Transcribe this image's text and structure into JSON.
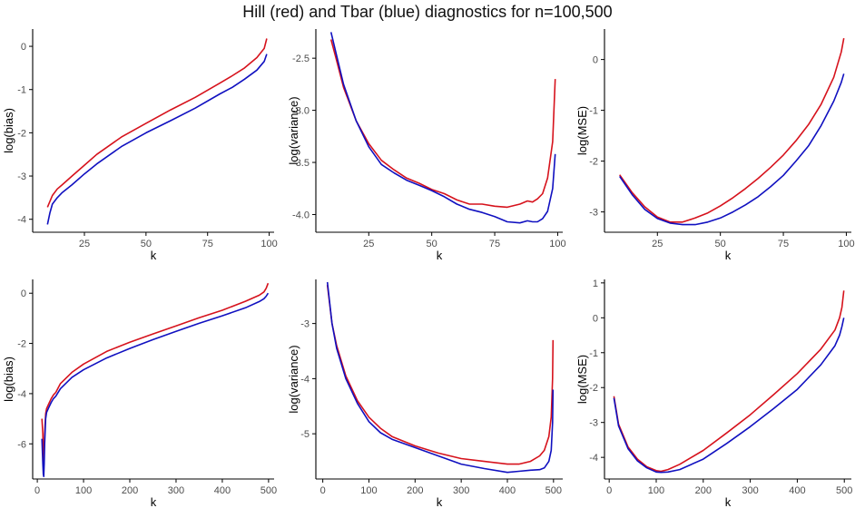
{
  "title": "Hill (red) and Tbar (blue) diagnostics for n=100,500",
  "colors": {
    "hill": "#d6121c",
    "tbar": "#1010c0",
    "axis": "#000000",
    "tick_text": "#4d4d4d"
  },
  "chart_data": [
    {
      "type": "line",
      "xlabel": "k",
      "ylabel": "log(bias)",
      "xlim": [
        4,
        102
      ],
      "ylim": [
        -4.3,
        0.4
      ],
      "xticks": [
        25,
        50,
        75,
        100
      ],
      "xtick_labels": [
        "25",
        "50",
        "75",
        "100"
      ],
      "yticks": [
        -4,
        -3,
        -2,
        -1,
        0
      ],
      "ytick_labels": [
        "-4",
        "-3",
        "-2",
        "-1",
        "0"
      ],
      "series": [
        {
          "name": "Hill",
          "color": "#d6121c",
          "x": [
            10,
            12,
            14,
            16,
            20,
            25,
            30,
            40,
            50,
            60,
            70,
            80,
            85,
            90,
            95,
            98,
            99
          ],
          "y": [
            -3.72,
            -3.45,
            -3.3,
            -3.2,
            -3.0,
            -2.75,
            -2.5,
            -2.1,
            -1.78,
            -1.47,
            -1.18,
            -0.85,
            -0.68,
            -0.5,
            -0.26,
            -0.05,
            0.18
          ]
        },
        {
          "name": "Tbar",
          "color": "#1010c0",
          "x": [
            10,
            11,
            12,
            14,
            16,
            20,
            25,
            30,
            40,
            50,
            60,
            70,
            80,
            85,
            90,
            95,
            98,
            99
          ],
          "y": [
            -4.12,
            -3.85,
            -3.65,
            -3.5,
            -3.38,
            -3.2,
            -2.95,
            -2.72,
            -2.32,
            -2.0,
            -1.72,
            -1.43,
            -1.1,
            -0.95,
            -0.76,
            -0.55,
            -0.35,
            -0.18
          ]
        }
      ]
    },
    {
      "type": "line",
      "xlabel": "k",
      "ylabel": "log(variance)",
      "xlim": [
        4,
        102
      ],
      "ylim": [
        -4.17,
        -2.22
      ],
      "xticks": [
        25,
        50,
        75,
        100
      ],
      "xtick_labels": [
        "25",
        "50",
        "75",
        "100"
      ],
      "yticks": [
        -4.0,
        -3.5,
        -3.0,
        -2.5
      ],
      "ytick_labels": [
        "-4.0",
        "-3.5",
        "-3.0",
        "-2.5"
      ],
      "series": [
        {
          "name": "Hill",
          "color": "#d6121c",
          "x": [
            10,
            12,
            15,
            20,
            25,
            30,
            35,
            40,
            45,
            50,
            55,
            60,
            65,
            70,
            75,
            80,
            85,
            88,
            90,
            92,
            94,
            96,
            98,
            99
          ],
          "y": [
            -2.32,
            -2.5,
            -2.78,
            -3.1,
            -3.32,
            -3.48,
            -3.57,
            -3.65,
            -3.7,
            -3.76,
            -3.8,
            -3.86,
            -3.9,
            -3.9,
            -3.92,
            -3.93,
            -3.9,
            -3.87,
            -3.88,
            -3.85,
            -3.8,
            -3.65,
            -3.3,
            -2.7
          ]
        },
        {
          "name": "Tbar",
          "color": "#1010c0",
          "x": [
            10,
            12,
            15,
            20,
            25,
            30,
            35,
            40,
            45,
            50,
            55,
            60,
            65,
            70,
            75,
            80,
            85,
            88,
            90,
            92,
            94,
            96,
            98,
            99
          ],
          "y": [
            -2.25,
            -2.45,
            -2.75,
            -3.1,
            -3.35,
            -3.52,
            -3.6,
            -3.67,
            -3.72,
            -3.77,
            -3.83,
            -3.9,
            -3.95,
            -3.98,
            -4.02,
            -4.07,
            -4.08,
            -4.06,
            -4.07,
            -4.07,
            -4.04,
            -3.97,
            -3.75,
            -3.42
          ]
        }
      ]
    },
    {
      "type": "line",
      "xlabel": "k",
      "ylabel": "log(MSE)",
      "xlim": [
        4,
        102
      ],
      "ylim": [
        -3.4,
        0.6
      ],
      "xticks": [
        25,
        50,
        75,
        100
      ],
      "xtick_labels": [
        "25",
        "50",
        "75",
        "100"
      ],
      "yticks": [
        -3,
        -2,
        -1,
        0
      ],
      "ytick_labels": [
        "-3",
        "-2",
        "-1",
        "0"
      ],
      "series": [
        {
          "name": "Hill",
          "color": "#d6121c",
          "x": [
            10,
            15,
            20,
            25,
            30,
            35,
            40,
            45,
            50,
            55,
            60,
            65,
            70,
            75,
            80,
            85,
            90,
            95,
            98,
            99
          ],
          "y": [
            -2.27,
            -2.62,
            -2.9,
            -3.1,
            -3.2,
            -3.2,
            -3.12,
            -3.02,
            -2.88,
            -2.72,
            -2.54,
            -2.34,
            -2.12,
            -1.88,
            -1.6,
            -1.28,
            -0.88,
            -0.35,
            0.15,
            0.42
          ]
        },
        {
          "name": "Tbar",
          "color": "#1010c0",
          "x": [
            10,
            15,
            20,
            25,
            30,
            35,
            40,
            45,
            50,
            55,
            60,
            65,
            70,
            75,
            80,
            85,
            90,
            95,
            98,
            99
          ],
          "y": [
            -2.3,
            -2.66,
            -2.95,
            -3.13,
            -3.22,
            -3.25,
            -3.25,
            -3.2,
            -3.12,
            -3.0,
            -2.86,
            -2.7,
            -2.5,
            -2.28,
            -2.0,
            -1.7,
            -1.3,
            -0.82,
            -0.45,
            -0.28
          ]
        }
      ]
    },
    {
      "type": "line",
      "xlabel": "k",
      "ylabel": "log(bias)",
      "xlim": [
        -10,
        512
      ],
      "ylim": [
        -7.4,
        0.55
      ],
      "xticks": [
        0,
        100,
        200,
        300,
        400,
        500
      ],
      "xtick_labels": [
        "0",
        "100",
        "200",
        "300",
        "400",
        "500"
      ],
      "yticks": [
        -6,
        -4,
        -2,
        0
      ],
      "ytick_labels": [
        "-6",
        "-4",
        "-2",
        "0"
      ],
      "series": [
        {
          "name": "Hill",
          "color": "#d6121c",
          "x": [
            10,
            12,
            13,
            14,
            15,
            16,
            18,
            20,
            25,
            30,
            35,
            40,
            50,
            75,
            100,
            150,
            200,
            250,
            300,
            350,
            400,
            450,
            480,
            490,
            495,
            499
          ],
          "y": [
            -5.0,
            -5.6,
            -6.6,
            -6.9,
            -6.2,
            -5.6,
            -4.8,
            -4.6,
            -4.4,
            -4.2,
            -4.05,
            -3.95,
            -3.6,
            -3.15,
            -2.82,
            -2.32,
            -1.95,
            -1.62,
            -1.3,
            -0.98,
            -0.68,
            -0.32,
            -0.08,
            0.05,
            0.2,
            0.4
          ]
        },
        {
          "name": "Tbar",
          "color": "#1010c0",
          "x": [
            10,
            12,
            13,
            14,
            15,
            16,
            18,
            20,
            25,
            30,
            35,
            40,
            50,
            75,
            100,
            150,
            200,
            250,
            300,
            350,
            400,
            450,
            480,
            490,
            495,
            499
          ],
          "y": [
            -5.8,
            -6.8,
            -7.2,
            -7.3,
            -6.8,
            -6.0,
            -5.0,
            -4.75,
            -4.55,
            -4.35,
            -4.2,
            -4.1,
            -3.8,
            -3.35,
            -3.05,
            -2.58,
            -2.2,
            -1.85,
            -1.52,
            -1.2,
            -0.9,
            -0.58,
            -0.33,
            -0.22,
            -0.12,
            0.0
          ]
        }
      ]
    },
    {
      "type": "line",
      "xlabel": "k",
      "ylabel": "log(variance)",
      "xlim": [
        -15,
        520
      ],
      "ylim": [
        -5.82,
        -2.2
      ],
      "xticks": [
        0,
        100,
        200,
        300,
        400,
        500
      ],
      "xtick_labels": [
        "0",
        "100",
        "200",
        "300",
        "400",
        "500"
      ],
      "yticks": [
        -5,
        -4,
        -3
      ],
      "ytick_labels": [
        "-5",
        "-4",
        "-3"
      ],
      "series": [
        {
          "name": "Hill",
          "color": "#d6121c",
          "x": [
            10,
            20,
            30,
            50,
            75,
            100,
            125,
            150,
            200,
            250,
            300,
            350,
            400,
            425,
            450,
            470,
            480,
            490,
            495,
            498,
            499
          ],
          "y": [
            -2.3,
            -3.0,
            -3.4,
            -3.95,
            -4.4,
            -4.7,
            -4.9,
            -5.05,
            -5.22,
            -5.35,
            -5.45,
            -5.5,
            -5.55,
            -5.55,
            -5.5,
            -5.4,
            -5.3,
            -5.05,
            -4.7,
            -4.0,
            -3.3
          ]
        },
        {
          "name": "Tbar",
          "color": "#1010c0",
          "x": [
            10,
            20,
            30,
            50,
            75,
            100,
            125,
            150,
            200,
            250,
            300,
            350,
            400,
            425,
            450,
            470,
            480,
            490,
            495,
            498,
            499
          ],
          "y": [
            -2.25,
            -3.0,
            -3.45,
            -4.0,
            -4.45,
            -4.78,
            -4.98,
            -5.1,
            -5.25,
            -5.4,
            -5.55,
            -5.63,
            -5.7,
            -5.68,
            -5.66,
            -5.65,
            -5.62,
            -5.5,
            -5.3,
            -4.8,
            -4.2
          ]
        }
      ]
    },
    {
      "type": "line",
      "xlabel": "k",
      "ylabel": "log(MSE)",
      "xlim": [
        -10,
        515
      ],
      "ylim": [
        -4.62,
        1.1
      ],
      "xticks": [
        0,
        100,
        200,
        300,
        400,
        500
      ],
      "xtick_labels": [
        "0",
        "100",
        "200",
        "300",
        "400",
        "500"
      ],
      "yticks": [
        -4,
        -3,
        -2,
        -1,
        0,
        1
      ],
      "ytick_labels": [
        "-4",
        "-3",
        "-2",
        "-1",
        "0",
        "1"
      ],
      "series": [
        {
          "name": "Hill",
          "color": "#d6121c",
          "x": [
            10,
            20,
            40,
            60,
            80,
            100,
            110,
            125,
            150,
            200,
            250,
            300,
            350,
            400,
            450,
            480,
            490,
            495,
            499
          ],
          "y": [
            -2.25,
            -3.05,
            -3.7,
            -4.05,
            -4.27,
            -4.38,
            -4.4,
            -4.35,
            -4.2,
            -3.8,
            -3.3,
            -2.78,
            -2.2,
            -1.6,
            -0.9,
            -0.35,
            0.0,
            0.3,
            0.78
          ]
        },
        {
          "name": "Tbar",
          "color": "#1010c0",
          "x": [
            10,
            20,
            40,
            60,
            80,
            100,
            110,
            125,
            150,
            200,
            250,
            300,
            350,
            400,
            450,
            480,
            490,
            495,
            499
          ],
          "y": [
            -2.3,
            -3.1,
            -3.75,
            -4.1,
            -4.3,
            -4.42,
            -4.43,
            -4.42,
            -4.35,
            -4.05,
            -3.6,
            -3.12,
            -2.6,
            -2.05,
            -1.35,
            -0.8,
            -0.5,
            -0.25,
            0.0
          ]
        }
      ]
    }
  ]
}
